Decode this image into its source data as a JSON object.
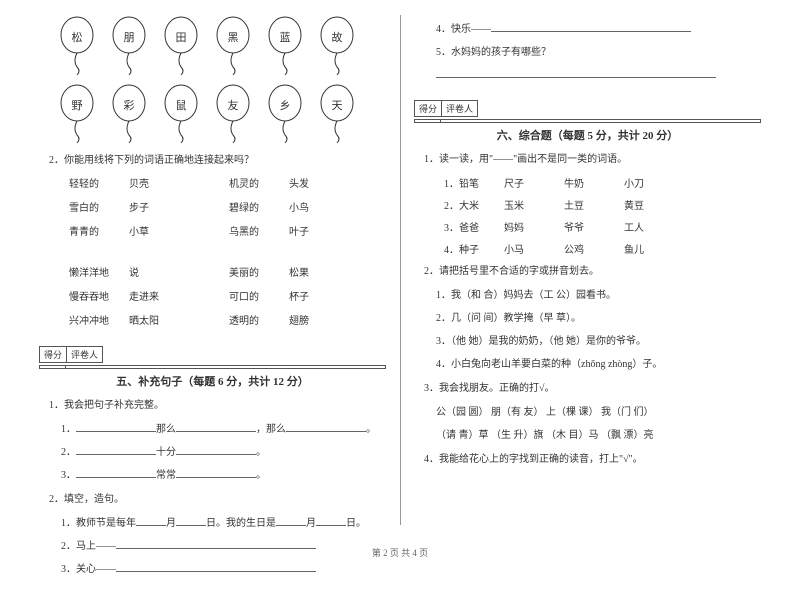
{
  "balloons": {
    "row1": [
      "松",
      "朋",
      "田",
      "黑",
      "蓝",
      "故"
    ],
    "row2": [
      "野",
      "彩",
      "鼠",
      "友",
      "乡",
      "天"
    ]
  },
  "q2_title": "2．你能用线将下列的词语正确地连接起来吗？",
  "pairs_a": [
    [
      "轻轻的",
      "贝壳",
      "机灵的",
      "头发"
    ],
    [
      "雪白的",
      "步子",
      "碧绿的",
      "小鸟"
    ],
    [
      "青青的",
      "小草",
      "乌黑的",
      "叶子"
    ]
  ],
  "pairs_b": [
    [
      "懒洋洋地",
      "说",
      "美丽的",
      "松果"
    ],
    [
      "慢吞吞地",
      "走进来",
      "可口的",
      "杯子"
    ],
    [
      "兴冲冲地",
      "晒太阳",
      "透明的",
      "翅膀"
    ]
  ],
  "score_labels": [
    "得分",
    "评卷人"
  ],
  "sec5_title": "五、补充句子（每题 6 分，共计 12 分）",
  "sec5_q1": "1．我会把句子补充完整。",
  "sec5_q1_items": [
    "1．__________那么__________，那么__________。",
    "2．__________十分__________。",
    "3．__________常常__________。"
  ],
  "sec5_q2": "2．填空，造句。",
  "sec5_q2_1_a": "1．教师节是每年",
  "sec5_q2_1_b": "月",
  "sec5_q2_1_c": "日。我的生日是",
  "sec5_q2_1_d": "月",
  "sec5_q2_1_e": "日。",
  "sec5_q2_2": "2．马上——",
  "sec5_q2_3": "3．关心——",
  "sec5_q2_4": "4．快乐——",
  "sec5_q2_5": "5．水妈妈的孩子有哪些？",
  "sec6_title": "六、综合题（每题 5 分，共计 20 分）",
  "sec6_q1": "1．读一读，用\"——\"画出不是同一类的词语。",
  "sec6_q1_rows": [
    [
      "1．铅笔",
      "尺子",
      "牛奶",
      "小刀"
    ],
    [
      "2．大米",
      "玉米",
      "土豆",
      "黄豆"
    ],
    [
      "3．爸爸",
      "妈妈",
      "爷爷",
      "工人"
    ],
    [
      "4．种子",
      "小马",
      "公鸡",
      "鱼儿"
    ]
  ],
  "sec6_q2": "2．请把括号里不合适的字或拼音划去。",
  "sec6_q2_items": [
    "1．我（和  合）妈妈去（工  公）园看书。",
    "2．几（问  间）教学掩（早  草）。",
    "3．（他  她）是我的奶奶，（他  她）是你的爷爷。",
    "4．小白兔向老山羊要白菜的种（zhǒng  zhòng）子。"
  ],
  "sec6_q3": "3．我会找朋友。正确的打√。",
  "sec6_q3_line1": "公（园  圆）      朋（有  友）      上（棵  课）      我（门  们）",
  "sec6_q3_line2": "（请  青）草      （生  升）旗     （木  目）马     （飘  漂）亮",
  "sec6_q4": "4．我能给花心上的字找到正确的读音，打上\"√\"。",
  "footer": "第 2 页  共 4 页"
}
